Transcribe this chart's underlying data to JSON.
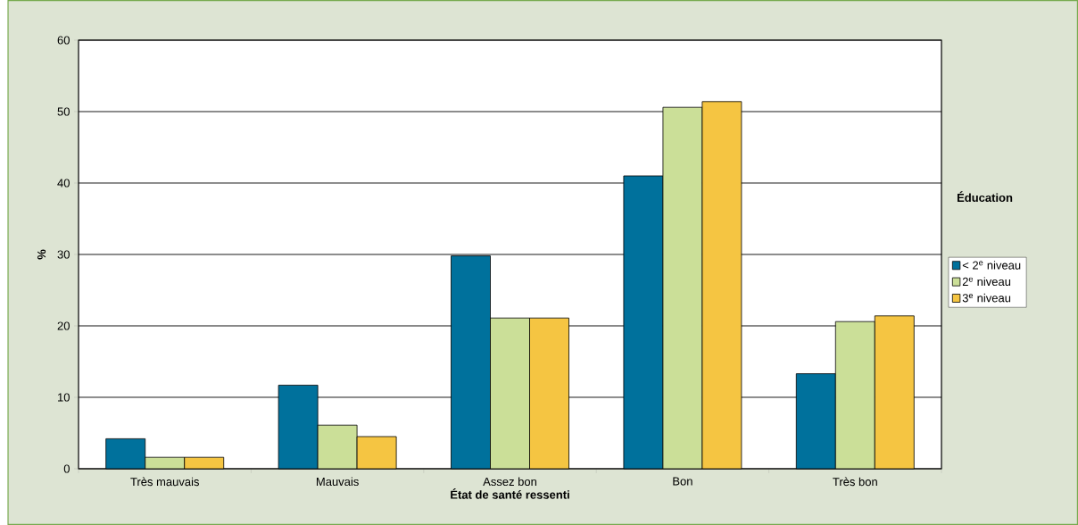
{
  "chart_data": {
    "type": "bar",
    "xlabel": "État de santé ressenti",
    "ylabel": "%",
    "legend_title": "Éducation",
    "categories": [
      "Très mauvais",
      "Mauvais",
      "Assez bon",
      "Bon",
      "Très bon"
    ],
    "series": [
      {
        "name": "< 2$^{e}$ niveau",
        "color": "#00719c",
        "values": [
          4.2,
          11.7,
          29.8,
          41.0,
          13.3
        ]
      },
      {
        "name": "2$^{e}$ niveau",
        "color": "#cbdf98",
        "values": [
          1.6,
          6.1,
          21.1,
          50.6,
          20.6
        ]
      },
      {
        "name": "3$^{e}$ niveau",
        "color": "#f5c542",
        "values": [
          1.6,
          4.5,
          21.1,
          51.4,
          21.4
        ]
      }
    ],
    "ylim": [
      0,
      60
    ],
    "yticks": [
      0,
      10,
      20,
      30,
      40,
      50,
      60
    ],
    "grid": "y",
    "legend": "right"
  }
}
